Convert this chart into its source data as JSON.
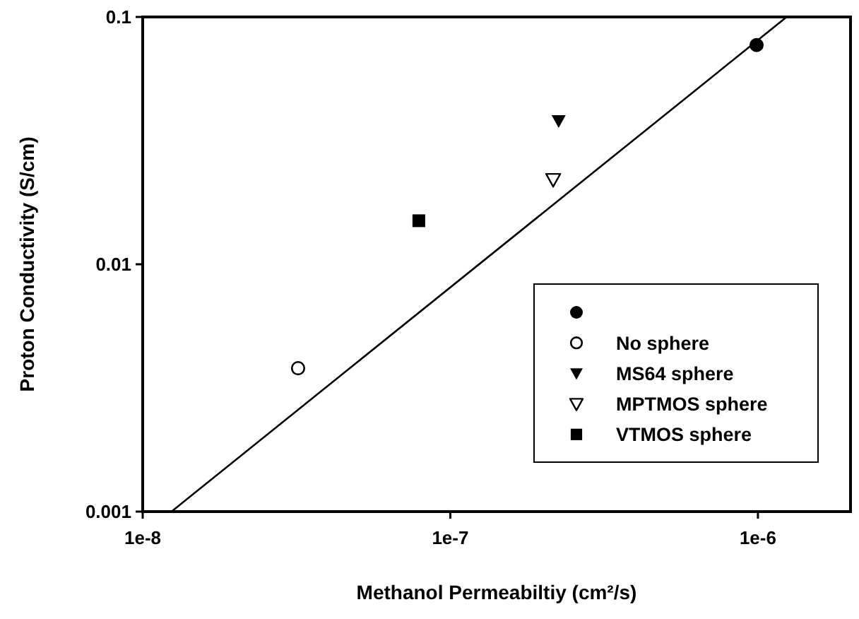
{
  "chart_data": {
    "type": "scatter",
    "xlabel": "Methanol Permeabiltiy (cm²/s)",
    "ylabel": "Proton Conductivity (S/cm)",
    "log": "xy",
    "grid": false,
    "legend": "bottom right",
    "xlim": [
      1e-08,
      2e-06
    ],
    "xticks": [
      {
        "value": 1e-08,
        "label": "1e-8"
      },
      {
        "value": 1e-07,
        "label": "1e-7"
      },
      {
        "value": 1e-06,
        "label": "1e-6"
      }
    ],
    "ylim": [
      0.001,
      0.1
    ],
    "yticks": [
      0.001,
      0.01,
      0.1
    ],
    "series": [
      {
        "color": "#000000",
        "marker": "circle",
        "x": [
          9.9e-07
        ],
        "values": [
          0.077
        ]
      },
      {
        "name": "No sphere",
        "color": "#000000",
        "marker": "circle-open",
        "x": [
          3.2e-08
        ],
        "values": [
          0.0038
        ]
      },
      {
        "name": "MS64 sphere",
        "color": "#000000",
        "marker": "triangle-down",
        "x": [
          2.25e-07
        ],
        "values": [
          0.038
        ]
      },
      {
        "name": "MPTMOS sphere",
        "color": "#000000",
        "marker": "triangle-down-open",
        "x": [
          2.16e-07
        ],
        "values": [
          0.022
        ]
      },
      {
        "name": "VTMOS sphere",
        "color": "#000000",
        "marker": "square",
        "x": [
          7.9e-08
        ],
        "values": [
          0.015
        ]
      },
      {
        "type": "line",
        "color": "#000000",
        "marker": "none",
        "line_style": "solid",
        "x": [
          1.24e-08,
          1.24e-06
        ],
        "values": [
          0.001,
          0.1
        ]
      }
    ]
  }
}
